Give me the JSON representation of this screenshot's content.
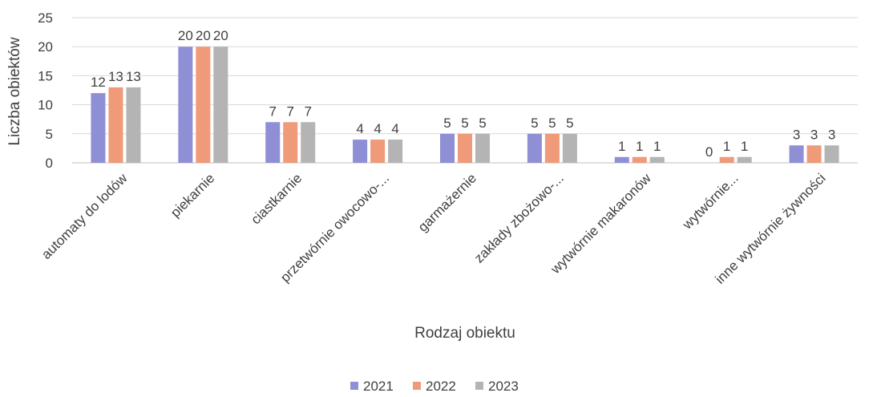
{
  "chart_data": {
    "type": "bar",
    "ylabel": "Liczba obiektów",
    "xlabel": "Rodzaj obiektu",
    "ylim": [
      0,
      25
    ],
    "yticks": [
      0,
      5,
      10,
      15,
      20,
      25
    ],
    "grid": true,
    "legend_position": "bottom",
    "categories": [
      "automaty do lodów",
      "piekarnie",
      "ciastkarnie",
      "przetwórnie owocowo-...",
      "garmażernie",
      "zakłady zbożowo-...",
      "wytwórnie makaronów",
      "wytwórnie...",
      "inne wytwórnie żywności"
    ],
    "series": [
      {
        "name": "2021",
        "color": "#8f8fd6",
        "values": [
          12,
          20,
          7,
          4,
          5,
          5,
          1,
          0,
          3
        ]
      },
      {
        "name": "2022",
        "color": "#ef9a78",
        "values": [
          13,
          20,
          7,
          4,
          5,
          5,
          1,
          1,
          3
        ]
      },
      {
        "name": "2023",
        "color": "#b4b4b4",
        "values": [
          13,
          20,
          7,
          4,
          5,
          5,
          1,
          1,
          3
        ]
      }
    ]
  }
}
